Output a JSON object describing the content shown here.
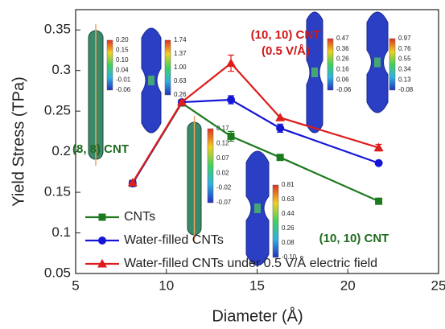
{
  "chart_data": {
    "type": "line",
    "x_label": "Diameter (Å)",
    "y_label": "Yield Stress (TPa)",
    "xlim": [
      5,
      25
    ],
    "xticks": [
      5,
      10,
      15,
      20,
      25
    ],
    "ylim": [
      0.05,
      0.375
    ],
    "yticks": [
      0.05,
      0.1,
      0.15,
      0.2,
      0.25,
      0.3,
      0.35
    ],
    "legend": "lower left",
    "series": [
      {
        "name": "CNTs",
        "color": "#1e7a1e",
        "marker": "square",
        "x": [
          8.14,
          10.85,
          13.56,
          16.27,
          21.7
        ],
        "values": [
          0.161,
          0.26,
          0.219,
          0.193,
          0.139
        ],
        "errors": [
          null,
          null,
          0.006,
          null,
          null
        ]
      },
      {
        "name": "Water-filled CNTs",
        "color": "#1515d6",
        "marker": "circle",
        "x": [
          8.14,
          10.85,
          13.56,
          16.27,
          21.7
        ],
        "values": [
          0.161,
          0.261,
          0.264,
          0.229,
          0.186
        ],
        "errors": [
          null,
          null,
          0.005,
          0.005,
          null
        ]
      },
      {
        "name": "Water-filled CNTs under 0.5 V/Å electric field",
        "color": "#dd1c1c",
        "marker": "triangle",
        "x": [
          8.14,
          10.85,
          13.56,
          16.27,
          21.7
        ],
        "values": [
          0.162,
          0.261,
          0.309,
          0.242,
          0.205
        ],
        "errors": [
          null,
          null,
          0.01,
          null,
          0.004
        ]
      }
    ],
    "annotations": [
      {
        "text": "(10, 10) CNT",
        "color": "#d01818"
      },
      {
        "text": "(0.5 V/Å)",
        "color": "#d01818"
      },
      {
        "text": "(8, 8) CNT",
        "color": "#1e6a1e"
      },
      {
        "text": "(10, 10) CNT",
        "color": "#1e6a1e"
      }
    ],
    "insets": [
      {
        "labels": [
          "0.20",
          "0.15",
          "0.10",
          "0.04",
          "-0.01",
          "-0.06"
        ]
      },
      {
        "labels": [
          "1.74",
          "1.37",
          "1.00",
          "0.63",
          "0.26"
        ]
      },
      {
        "labels": [
          "0.47",
          "0.36",
          "0.26",
          "0.16",
          "0.06",
          "-0.06"
        ]
      },
      {
        "labels": [
          "0.97",
          "0.76",
          "0.55",
          "0.34",
          "0.13",
          "-0.08"
        ]
      },
      {
        "labels": [
          "0.17",
          "0.12",
          "0.07",
          "0.02",
          "-0.02",
          "-0.07"
        ]
      },
      {
        "labels": [
          "0.81",
          "0.63",
          "0.44",
          "0.26",
          "0.08",
          "-0.10"
        ]
      }
    ]
  }
}
